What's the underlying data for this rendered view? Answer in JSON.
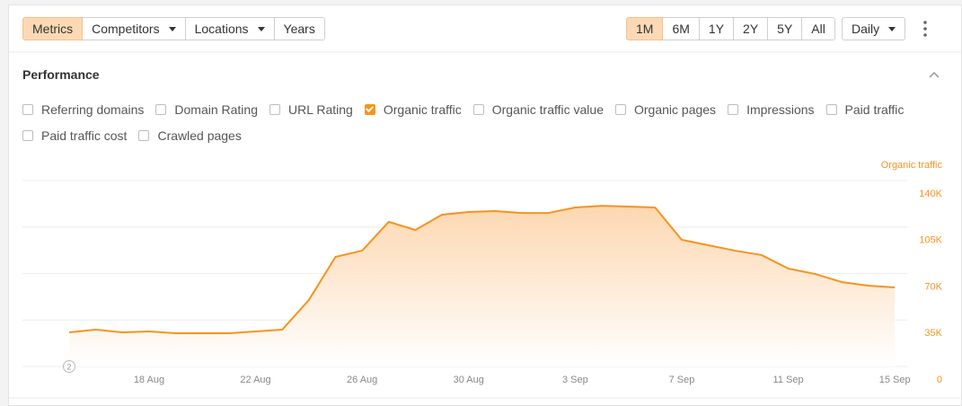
{
  "toolbar": {
    "filters": [
      {
        "label": "Metrics",
        "active": true,
        "dropdown": false
      },
      {
        "label": "Competitors",
        "active": false,
        "dropdown": true
      },
      {
        "label": "Locations",
        "active": false,
        "dropdown": true
      },
      {
        "label": "Years",
        "active": false,
        "dropdown": false
      }
    ],
    "periods": [
      {
        "label": "1M",
        "active": true
      },
      {
        "label": "6M",
        "active": false
      },
      {
        "label": "1Y",
        "active": false
      },
      {
        "label": "2Y",
        "active": false
      },
      {
        "label": "5Y",
        "active": false
      },
      {
        "label": "All",
        "active": false
      }
    ],
    "interval": "Daily"
  },
  "section": {
    "title": "Performance",
    "metrics": [
      {
        "label": "Referring domains",
        "checked": false
      },
      {
        "label": "Domain Rating",
        "checked": false
      },
      {
        "label": "URL Rating",
        "checked": false
      },
      {
        "label": "Organic traffic",
        "checked": true
      },
      {
        "label": "Organic traffic value",
        "checked": false
      },
      {
        "label": "Organic pages",
        "checked": false
      },
      {
        "label": "Impressions",
        "checked": false
      },
      {
        "label": "Paid traffic",
        "checked": false
      },
      {
        "label": "Paid traffic cost",
        "checked": false
      },
      {
        "label": "Crawled pages",
        "checked": false
      }
    ]
  },
  "chart_data": {
    "type": "area",
    "y_label": "Organic traffic",
    "color": "#f7931e",
    "categories": [
      null,
      null,
      null,
      "18 Aug",
      null,
      null,
      null,
      "22 Aug",
      null,
      null,
      null,
      "26 Aug",
      null,
      null,
      null,
      "30 Aug",
      null,
      null,
      null,
      "3 Sep",
      null,
      null,
      null,
      "7 Sep",
      null,
      null,
      null,
      "11 Sep",
      null,
      null,
      null,
      "15 Sep"
    ],
    "values": [
      25700,
      27700,
      25700,
      26400,
      25000,
      25000,
      25000,
      26400,
      27700,
      50000,
      82500,
      87200,
      108900,
      102800,
      114300,
      116300,
      117000,
      115600,
      115600,
      119700,
      121000,
      120400,
      119700,
      95400,
      91300,
      87200,
      83900,
      73700,
      69700,
      63600,
      60900,
      59500
    ],
    "ylim": [
      0,
      140000
    ],
    "yticks": [
      0,
      {
        "value": 35000,
        "label": "35K"
      },
      {
        "value": 70000,
        "label": "70K"
      },
      {
        "value": 105000,
        "label": "105K"
      },
      {
        "value": 140000,
        "label": "140K"
      }
    ],
    "grid": true,
    "annotation": "2"
  }
}
